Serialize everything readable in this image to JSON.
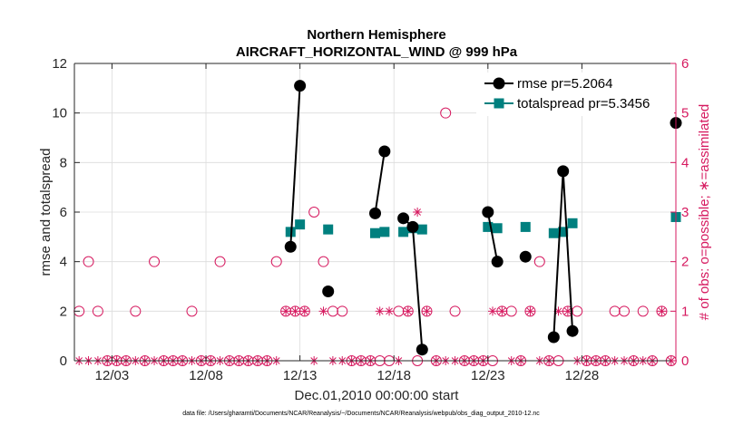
{
  "chart_data": {
    "type": "line",
    "title": "Northern Hemisphere",
    "subtitle": "AIRCRAFT_HORIZONTAL_WIND @ 999 hPa",
    "xlabel": "Dec.01,2010 00:00:00 start",
    "ylabel": "rmse and totalspread",
    "y2label": "# of obs: o=possible; ∗=assimilated",
    "footnote": "data file: /Users/gharamti/Documents/NCAR/Reanalysis/~/Documents/NCAR/Reanalysis/webpub/obs_diag_output_2010-12.nc",
    "xlim": [
      0,
      32
    ],
    "ylim": [
      0,
      12
    ],
    "y2lim": [
      0,
      6
    ],
    "xticks": [
      2,
      7,
      12,
      17,
      22,
      27
    ],
    "xtick_labels": [
      "12/03",
      "12/08",
      "12/13",
      "12/18",
      "12/23",
      "12/28"
    ],
    "yticks": [
      0,
      2,
      4,
      6,
      8,
      10,
      12
    ],
    "ytick_labels": [
      "0",
      "2",
      "4",
      "6",
      "8",
      "10",
      "12"
    ],
    "y2ticks": [
      0,
      1,
      2,
      3,
      4,
      5,
      6
    ],
    "y2tick_labels": [
      "0",
      "1",
      "2",
      "3",
      "4",
      "5",
      "6"
    ],
    "grid": true,
    "legend_position": "top-right",
    "colors": {
      "rmse": "#000000",
      "spread": "#00807f",
      "obs": "#d6195f",
      "grid": "#dcdcdc"
    },
    "series": [
      {
        "name": "rmse pr=5.2064",
        "marker": "circle",
        "x": [
          11.5,
          12,
          12.5,
          13.5,
          16,
          16.5,
          17.5,
          18,
          18.5,
          22,
          22.5,
          24,
          25.5,
          26,
          26.5,
          32
        ],
        "values": [
          4.6,
          11.1,
          null,
          2.8,
          5.95,
          8.45,
          5.75,
          5.4,
          0.45,
          6.0,
          4.0,
          4.2,
          0.95,
          7.65,
          1.2,
          9.6
        ]
      },
      {
        "name": "totalspread pr=5.3456",
        "marker": "square",
        "x": [
          11.5,
          12,
          12.5,
          13.5,
          16,
          16.5,
          17.5,
          18,
          18.5,
          22,
          22.5,
          24,
          25.5,
          26,
          26.5,
          32
        ],
        "values": [
          5.2,
          5.5,
          null,
          5.3,
          5.15,
          5.2,
          5.2,
          5.35,
          5.3,
          5.4,
          5.35,
          5.4,
          5.15,
          5.2,
          5.55,
          5.8
        ]
      }
    ],
    "obs_possible": {
      "x": [
        0.25,
        0.75,
        1.25,
        1.75,
        2.25,
        2.75,
        3.25,
        3.75,
        4.25,
        4.75,
        5.25,
        5.75,
        6.25,
        6.75,
        7.25,
        7.75,
        8.25,
        8.75,
        9.25,
        9.75,
        10.25,
        10.75,
        11.25,
        11.75,
        12.25,
        12.75,
        13.25,
        13.75,
        14.25,
        14.75,
        15.25,
        15.75,
        16.25,
        16.75,
        17.25,
        17.75,
        18.25,
        18.75,
        19.25,
        19.75,
        20.25,
        20.75,
        21.25,
        21.75,
        22.25,
        22.75,
        23.25,
        23.75,
        24.25,
        24.75,
        25.25,
        25.75,
        26.25,
        26.75,
        27.25,
        27.75,
        28.25,
        28.75,
        29.25,
        29.75,
        30.25,
        30.75,
        31.25,
        31.75
      ],
      "values": [
        1,
        2,
        1,
        0,
        0,
        0,
        1,
        0,
        2,
        0,
        0,
        0,
        1,
        0,
        0,
        2,
        0,
        0,
        0,
        0,
        0,
        2,
        1,
        1,
        1,
        3,
        2,
        1,
        1,
        0,
        0,
        0,
        0,
        0,
        1,
        1,
        0,
        1,
        0,
        5,
        1,
        0,
        0,
        0,
        0,
        1,
        1,
        0,
        1,
        2,
        0,
        0,
        1,
        1,
        0,
        0,
        0,
        1,
        1,
        0,
        1,
        0,
        1,
        0
      ]
    },
    "obs_assimilated": {
      "x": [
        0.25,
        0.75,
        1.25,
        1.75,
        2.25,
        2.75,
        3.25,
        3.75,
        4.25,
        4.75,
        5.25,
        5.75,
        6.25,
        6.75,
        7.25,
        7.75,
        8.25,
        8.75,
        9.25,
        9.75,
        10.25,
        10.75,
        11.25,
        11.75,
        12.25,
        12.75,
        13.25,
        13.75,
        14.25,
        14.75,
        15.25,
        15.75,
        16.25,
        16.75,
        17.25,
        17.75,
        18.25,
        18.75,
        19.25,
        19.75,
        20.25,
        20.75,
        21.25,
        21.75,
        22.25,
        22.75,
        23.25,
        23.75,
        24.25,
        24.75,
        25.25,
        25.75,
        26.25,
        26.75,
        27.25,
        27.75,
        28.25,
        28.75,
        29.25,
        29.75,
        30.25,
        30.75,
        31.25,
        31.75
      ],
      "values": [
        0,
        0,
        0,
        0,
        0,
        0,
        0,
        0,
        0,
        0,
        0,
        0,
        0,
        0,
        0,
        0,
        0,
        0,
        0,
        0,
        0,
        0,
        1,
        1,
        1,
        0,
        1,
        0,
        0,
        0,
        0,
        0,
        1,
        1,
        0,
        1,
        3,
        1,
        0,
        0,
        0,
        0,
        0,
        0,
        1,
        1,
        0,
        0,
        1,
        0,
        0,
        1,
        1,
        0,
        0,
        0,
        0,
        0,
        0,
        0,
        0,
        0,
        1,
        0
      ]
    }
  }
}
